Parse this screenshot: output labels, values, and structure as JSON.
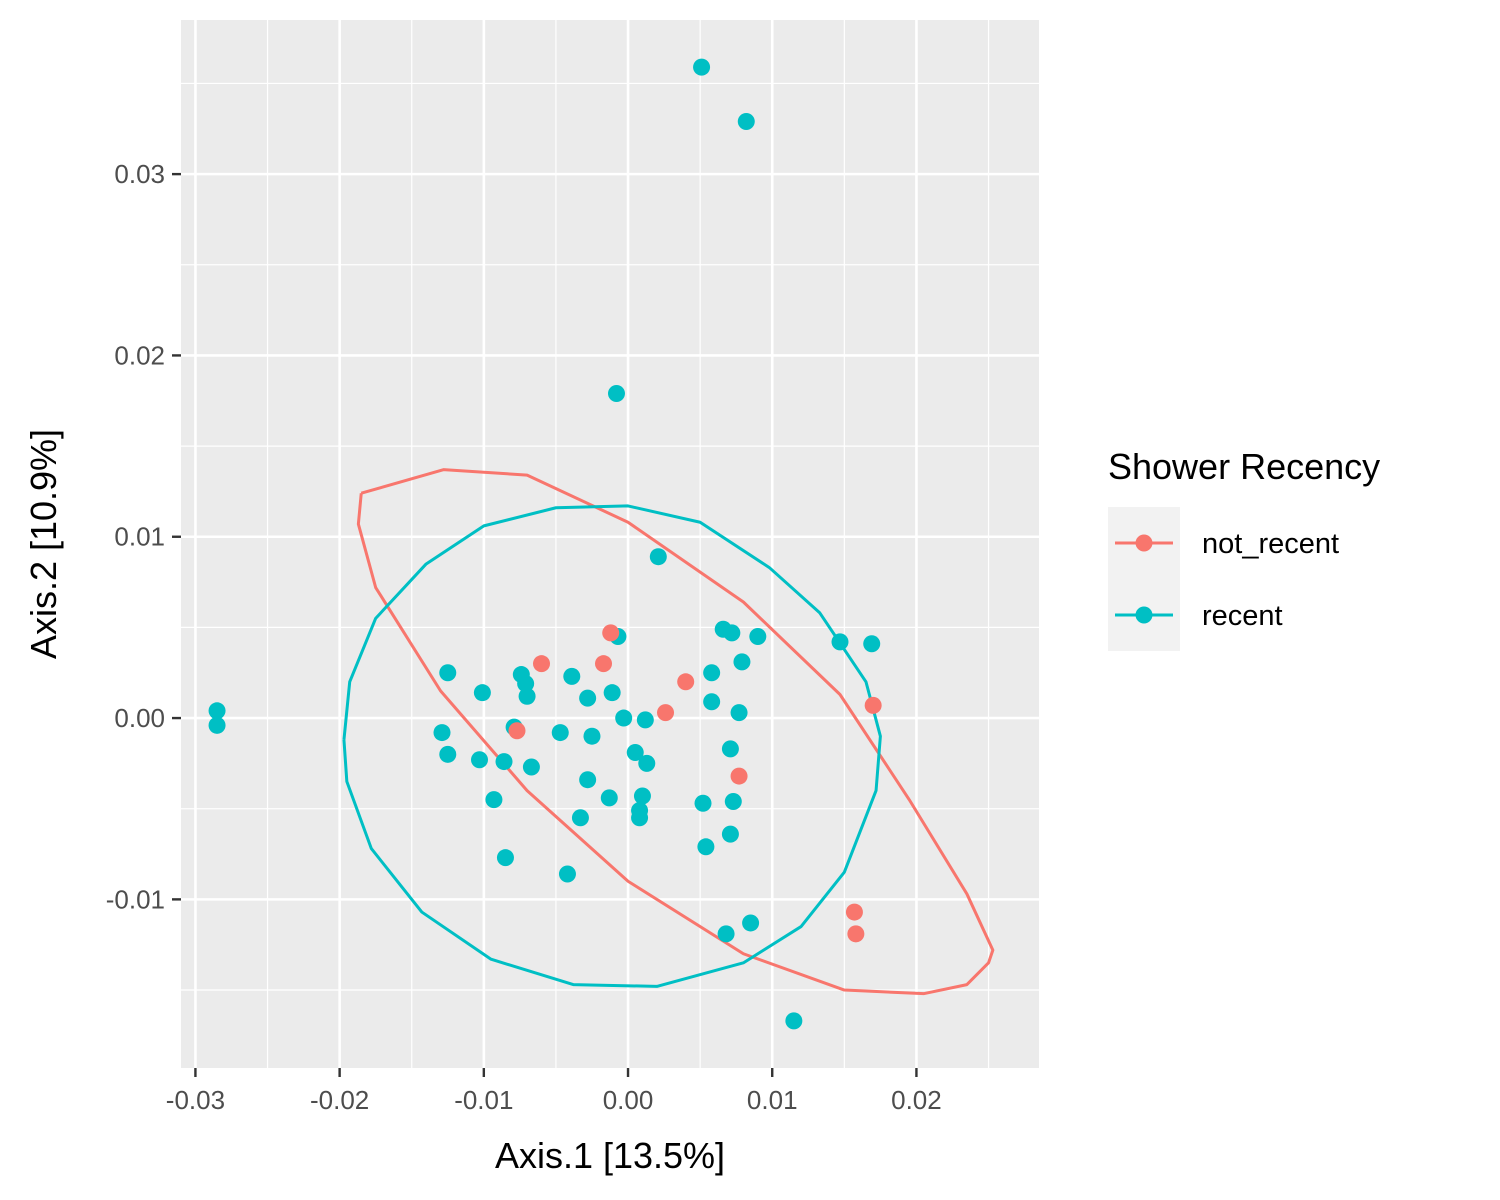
{
  "chart_data": {
    "type": "scatter",
    "title": "",
    "xlabel": "Axis.1   [13.5%]",
    "ylabel": "Axis.2   [10.9%]",
    "xlim": [
      -0.031,
      0.0285
    ],
    "ylim": [
      -0.0193,
      0.0385
    ],
    "x_ticks": [
      -0.03,
      -0.02,
      -0.01,
      0.0,
      0.01,
      0.02
    ],
    "x_tick_labels": [
      "-0.03",
      "-0.02",
      "-0.01",
      "0.00",
      "0.01",
      "0.02"
    ],
    "y_ticks": [
      -0.01,
      0.0,
      0.01,
      0.02,
      0.03
    ],
    "y_tick_labels": [
      "-0.01",
      "0.00",
      "0.01",
      "0.02",
      "0.03"
    ],
    "grid": true,
    "legend": {
      "title": "Shower Recency",
      "placement": "right"
    },
    "series": [
      {
        "name": "not_recent",
        "color": "#F8766D",
        "points": [
          [
            -0.0012,
            0.0047
          ],
          [
            -0.006,
            0.003
          ],
          [
            -0.0017,
            0.003
          ],
          [
            0.004,
            0.002
          ],
          [
            0.0026,
            0.0003
          ],
          [
            -0.0077,
            -0.0007
          ],
          [
            0.0077,
            -0.0032
          ],
          [
            0.017,
            0.0007
          ],
          [
            0.0157,
            -0.0107
          ],
          [
            0.0158,
            -0.0119
          ]
        ],
        "ellipse": {
          "center": [
            0.0034,
            -0.0017
          ],
          "points": [
            [
              -0.0185,
              0.0124
            ],
            [
              -0.0128,
              0.0137
            ],
            [
              -0.007,
              0.0134
            ],
            [
              0.0,
              0.0108
            ],
            [
              0.008,
              0.0064
            ],
            [
              0.0147,
              0.0013
            ],
            [
              0.0195,
              -0.0045
            ],
            [
              0.0235,
              -0.0097
            ],
            [
              0.0253,
              -0.0128
            ],
            [
              0.025,
              -0.0135
            ],
            [
              0.0235,
              -0.0147
            ],
            [
              0.0205,
              -0.0152
            ],
            [
              0.015,
              -0.015
            ],
            [
              0.008,
              -0.013
            ],
            [
              0.0,
              -0.009
            ],
            [
              -0.007,
              -0.004
            ],
            [
              -0.013,
              0.0015
            ],
            [
              -0.0175,
              0.0072
            ],
            [
              -0.0187,
              0.0107
            ],
            [
              -0.0185,
              0.0124
            ]
          ]
        }
      },
      {
        "name": "recent",
        "color": "#00BFC4",
        "points": [
          [
            0.0051,
            0.0359
          ],
          [
            0.0082,
            0.0329
          ],
          [
            -0.0008,
            0.0179
          ],
          [
            0.0021,
            0.0089
          ],
          [
            -0.0007,
            0.0045
          ],
          [
            0.0066,
            0.0049
          ],
          [
            0.0072,
            0.0047
          ],
          [
            0.009,
            0.0045
          ],
          [
            0.0147,
            0.0042
          ],
          [
            0.0169,
            0.0041
          ],
          [
            -0.0125,
            0.0025
          ],
          [
            -0.0074,
            0.0024
          ],
          [
            -0.0071,
            0.0019
          ],
          [
            -0.0039,
            0.0023
          ],
          [
            0.0058,
            0.0025
          ],
          [
            0.0079,
            0.0031
          ],
          [
            -0.0101,
            0.0014
          ],
          [
            -0.007,
            0.0012
          ],
          [
            -0.0028,
            0.0011
          ],
          [
            -0.0011,
            0.0014
          ],
          [
            0.0058,
            0.0009
          ],
          [
            0.0077,
            0.0003
          ],
          [
            -0.0003,
            0.0
          ],
          [
            0.0012,
            -0.0001
          ],
          [
            -0.0079,
            -0.0005
          ],
          [
            -0.0129,
            -0.0008
          ],
          [
            -0.0047,
            -0.0008
          ],
          [
            -0.0025,
            -0.001
          ],
          [
            -0.0125,
            -0.002
          ],
          [
            -0.0103,
            -0.0023
          ],
          [
            -0.0086,
            -0.0024
          ],
          [
            -0.0067,
            -0.0027
          ],
          [
            0.0005,
            -0.0019
          ],
          [
            0.0013,
            -0.0025
          ],
          [
            0.0071,
            -0.0017
          ],
          [
            -0.0028,
            -0.0034
          ],
          [
            -0.0093,
            -0.0045
          ],
          [
            -0.0013,
            -0.0044
          ],
          [
            0.001,
            -0.0043
          ],
          [
            0.0052,
            -0.0047
          ],
          [
            0.0073,
            -0.0046
          ],
          [
            0.0008,
            -0.0051
          ],
          [
            0.0008,
            -0.0055
          ],
          [
            -0.0033,
            -0.0055
          ],
          [
            0.0071,
            -0.0064
          ],
          [
            0.0054,
            -0.0071
          ],
          [
            -0.0085,
            -0.0077
          ],
          [
            -0.0042,
            -0.0086
          ],
          [
            0.0068,
            -0.0119
          ],
          [
            0.0085,
            -0.0113
          ],
          [
            0.0115,
            -0.0167
          ],
          [
            -0.0285,
            0.0004
          ],
          [
            -0.0285,
            -0.0004
          ]
        ],
        "ellipse": {
          "center": [
            -0.0016,
            -0.0013
          ],
          "points": [
            [
              -0.0197,
              -0.0012
            ],
            [
              -0.0193,
              0.002
            ],
            [
              -0.0175,
              0.0055
            ],
            [
              -0.014,
              0.0085
            ],
            [
              -0.01,
              0.0106
            ],
            [
              -0.005,
              0.0116
            ],
            [
              0.0,
              0.0117
            ],
            [
              0.005,
              0.0108
            ],
            [
              0.0098,
              0.0083
            ],
            [
              0.0133,
              0.0058
            ],
            [
              0.0165,
              0.002
            ],
            [
              0.0175,
              -0.001
            ],
            [
              0.0172,
              -0.004
            ],
            [
              0.015,
              -0.0085
            ],
            [
              0.012,
              -0.0115
            ],
            [
              0.008,
              -0.0135
            ],
            [
              0.002,
              -0.0148
            ],
            [
              -0.0038,
              -0.0147
            ],
            [
              -0.0095,
              -0.0133
            ],
            [
              -0.0143,
              -0.0107
            ],
            [
              -0.0178,
              -0.0072
            ],
            [
              -0.0195,
              -0.0035
            ],
            [
              -0.0197,
              -0.0012
            ]
          ]
        }
      }
    ]
  }
}
